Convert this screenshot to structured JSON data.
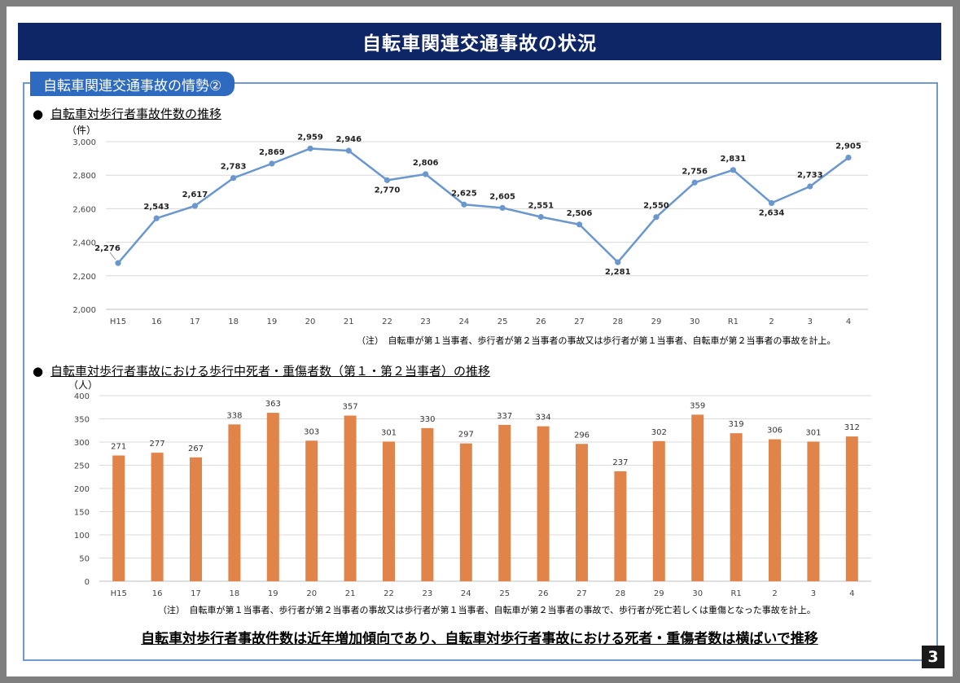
{
  "page_title": "自転車関連交通事故の状況",
  "section_tag": "自転車関連交通事故の情勢②",
  "bullet_glyph": "●",
  "chart_data": [
    {
      "type": "line",
      "title": "自転車対歩行者事故件数の推移",
      "unit": "（件）",
      "categories": [
        "H15",
        "16",
        "17",
        "18",
        "19",
        "20",
        "21",
        "22",
        "23",
        "24",
        "25",
        "26",
        "27",
        "28",
        "29",
        "30",
        "R1",
        "2",
        "3",
        "4"
      ],
      "values": [
        2276,
        2543,
        2617,
        2783,
        2869,
        2959,
        2946,
        2770,
        2806,
        2625,
        2605,
        2551,
        2506,
        2281,
        2550,
        2756,
        2831,
        2634,
        2733,
        2905
      ],
      "value_labels": [
        "2,276",
        "2,543",
        "2,617",
        "2,783",
        "2,869",
        "2,959",
        "2,946",
        "2,770",
        "2,806",
        "2,625",
        "2,605",
        "2,551",
        "2,506",
        "2,281",
        "2,550",
        "2,756",
        "2,831",
        "2,634",
        "2,733",
        "2,905"
      ],
      "yticks": [
        "2,000",
        "2,200",
        "2,400",
        "2,600",
        "2,800",
        "3,000"
      ],
      "ylim": [
        2000,
        3000
      ],
      "color": "#6a97cd",
      "note": "（注）　自転車が第１当事者、歩行者が第２当事者の事故又は歩行者が第１当事者、自転車が第２当事者の事故を計上。"
    },
    {
      "type": "bar",
      "title": "自転車対歩行者事故における歩行中死者・重傷者数（第１・第２当事者）の推移",
      "unit": "（人）",
      "categories": [
        "H15",
        "16",
        "17",
        "18",
        "19",
        "20",
        "21",
        "22",
        "23",
        "24",
        "25",
        "26",
        "27",
        "28",
        "29",
        "30",
        "R1",
        "2",
        "3",
        "4"
      ],
      "values": [
        271,
        277,
        267,
        338,
        363,
        303,
        357,
        301,
        330,
        297,
        337,
        334,
        296,
        237,
        302,
        359,
        319,
        306,
        301,
        312
      ],
      "yticks": [
        "0",
        "50",
        "100",
        "150",
        "200",
        "250",
        "300",
        "350",
        "400"
      ],
      "ylim": [
        0,
        400
      ],
      "color": "#e0844a",
      "note": "（注）　自転車が第１当事者、歩行者が第２当事者の事故又は歩行者が第１当事者、自転車が第２当事者の事故で、歩行者が死亡若しくは重傷となった事故を計上。"
    }
  ],
  "conclusion": "自転車対歩行者事故件数は近年増加傾向であり、自転車対歩行者事故における死者・重傷者数は横ばいで推移",
  "page_number": "3"
}
